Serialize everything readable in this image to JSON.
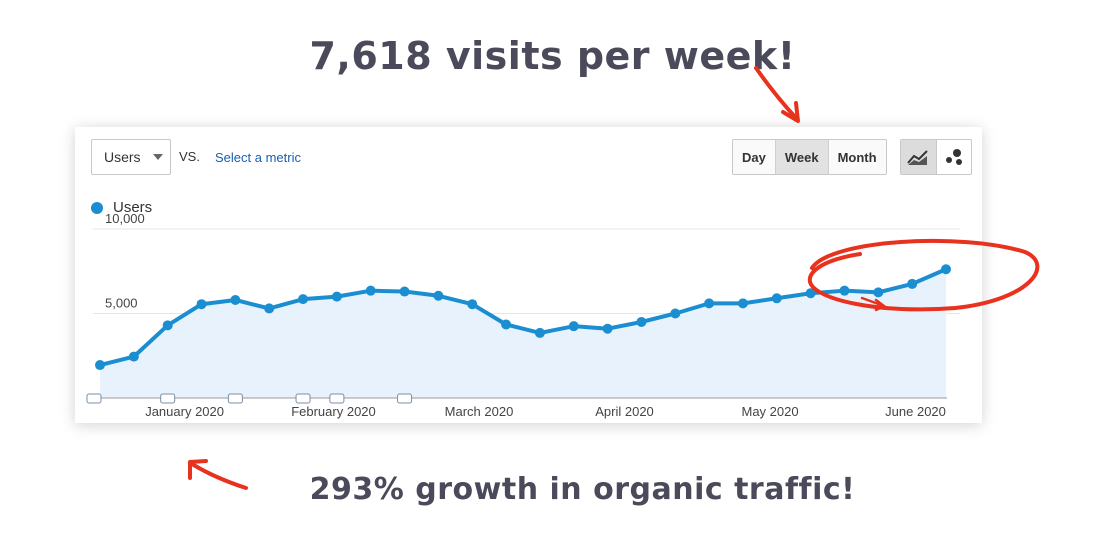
{
  "headline_top": "7,618 visits per week!",
  "headline_bottom": "293% growth in organic traffic!",
  "toolbar": {
    "metric_value": "Users",
    "vs_label": "VS.",
    "select_metric_label": "Select a metric",
    "period_buttons": [
      "Day",
      "Week",
      "Month"
    ],
    "active_period": "Week",
    "view_icons": [
      "line-chart-icon",
      "motion-chart-icon"
    ]
  },
  "colors": {
    "line": "#1a8ed1",
    "fill": "#e8f2fc",
    "annotation": "#e8321e",
    "headline": "#4a4a5a"
  },
  "chart_data": {
    "type": "area",
    "title": "",
    "xlabel": "",
    "ylabel": "",
    "ylim": [
      0,
      10000
    ],
    "yticks": [
      5000,
      10000
    ],
    "ytick_labels": [
      "5,000",
      "10,000"
    ],
    "x_month_labels": [
      "January 2020",
      "February 2020",
      "March 2020",
      "April 2020",
      "May 2020",
      "June 2020"
    ],
    "x_month_label_index": [
      2.5,
      6.9,
      11.2,
      15.5,
      19.8,
      24.1
    ],
    "annotation_marker_index": [
      0,
      2,
      4,
      6,
      7,
      9
    ],
    "grid": true,
    "legend": "top-left",
    "series": [
      {
        "name": "Users",
        "values": [
          1950,
          2450,
          4300,
          5550,
          5800,
          5300,
          5850,
          6000,
          6350,
          6300,
          6050,
          5550,
          4350,
          3850,
          4250,
          4100,
          4500,
          5000,
          5600,
          5600,
          5900,
          6200,
          6350,
          6250,
          6750,
          7618
        ]
      }
    ]
  }
}
